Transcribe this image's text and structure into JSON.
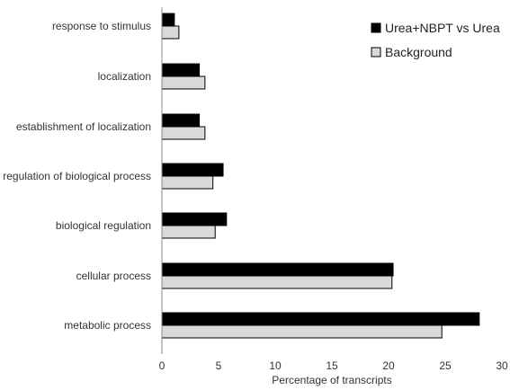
{
  "chart_data": {
    "type": "bar",
    "orientation": "horizontal",
    "categories": [
      "response to stimulus",
      "localization",
      "establishment of localization",
      "regulation of biological process",
      "biological regulation",
      "cellular process",
      "metabolic process"
    ],
    "series": [
      {
        "name": "Urea+NBPT vs Urea",
        "color": "#000000",
        "values": [
          1.1,
          3.3,
          3.3,
          5.4,
          5.7,
          20.4,
          28.0
        ]
      },
      {
        "name": "Background",
        "color": "#d9d9d9",
        "values": [
          1.5,
          3.8,
          3.8,
          4.5,
          4.7,
          20.3,
          24.7
        ]
      }
    ],
    "xlabel": "Percentage of transcripts",
    "ylabel": "",
    "xlim": [
      0,
      30
    ],
    "xticks": [
      "0",
      "5",
      "10",
      "15",
      "20",
      "25",
      "30"
    ],
    "grid": false,
    "legend_position": "top-right"
  }
}
